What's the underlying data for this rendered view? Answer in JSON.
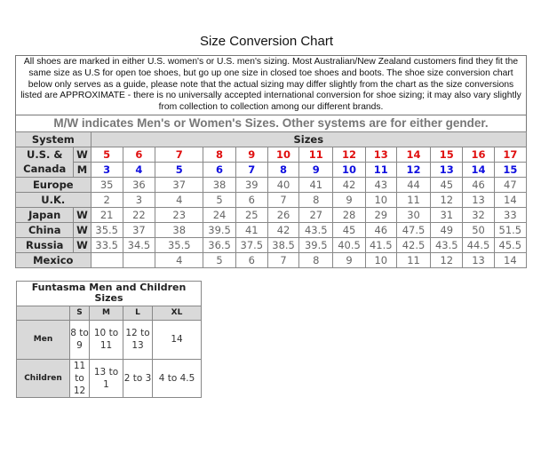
{
  "title": "Size Conversion Chart",
  "note": "All shoes are marked in either U.S. women's or U.S. men's sizing. Most Australian/New Zealand customers find they fit the same size as U.S for open toe shoes, but go up one size in closed toe shoes and boots. The shoe size conversion chart below only serves as a guide, please note that the actual sizing may differ slightly from the chart as the size conversions listed are APPROXIMATE - there is no universally accepted international conversion for shoe sizing; it may also vary slightly from collection to collection among our different brands.",
  "mw_note": "M/W indicates Men's or Women's Sizes. Other systems are for either gender.",
  "main_table": {
    "system_header": "System",
    "sizes_header": "Sizes",
    "us_label": "U.S. & Canada",
    "rows": [
      {
        "label": "",
        "sub": "W",
        "kind": "w",
        "values": [
          "5",
          "6",
          "7",
          "8",
          "9",
          "10",
          "11",
          "12",
          "13",
          "14",
          "15",
          "16",
          "17"
        ]
      },
      {
        "label": "",
        "sub": "M",
        "kind": "m",
        "values": [
          "3",
          "4",
          "5",
          "6",
          "7",
          "8",
          "9",
          "10",
          "11",
          "12",
          "13",
          "14",
          "15"
        ]
      },
      {
        "label": "Europe",
        "sub": "",
        "kind": "n",
        "values": [
          "35",
          "36",
          "37",
          "38",
          "39",
          "40",
          "41",
          "42",
          "43",
          "44",
          "45",
          "46",
          "47"
        ]
      },
      {
        "label": "U.K.",
        "sub": "",
        "kind": "n",
        "values": [
          "2",
          "3",
          "4",
          "5",
          "6",
          "7",
          "8",
          "9",
          "10",
          "11",
          "12",
          "13",
          "14"
        ]
      },
      {
        "label": "Japan",
        "sub": "W",
        "kind": "n",
        "values": [
          "21",
          "22",
          "23",
          "24",
          "25",
          "26",
          "27",
          "28",
          "29",
          "30",
          "31",
          "32",
          "33"
        ]
      },
      {
        "label": "China",
        "sub": "W",
        "kind": "n",
        "values": [
          "35.5",
          "37",
          "38",
          "39.5",
          "41",
          "42",
          "43.5",
          "45",
          "46",
          "47.5",
          "49",
          "50",
          "51.5"
        ]
      },
      {
        "label": "Russia",
        "sub": "W",
        "kind": "n",
        "values": [
          "33.5",
          "34.5",
          "35.5",
          "36.5",
          "37.5",
          "38.5",
          "39.5",
          "40.5",
          "41.5",
          "42.5",
          "43.5",
          "44.5",
          "45.5"
        ]
      },
      {
        "label": "Mexico",
        "sub": "",
        "kind": "n",
        "values": [
          "",
          "",
          "4",
          "5",
          "6",
          "7",
          "8",
          "9",
          "10",
          "11",
          "12",
          "13",
          "14"
        ]
      }
    ]
  },
  "funtasma": {
    "title": "Funtasma Men and Children Sizes",
    "headers": [
      "S",
      "M",
      "L",
      "XL"
    ],
    "rows": [
      {
        "label": "Men",
        "values": [
          "8 to 9",
          "10 to 11",
          "12 to 13",
          "14"
        ]
      },
      {
        "label": "Children",
        "values": [
          "11 to 12",
          "13 to 1",
          "2 to 3",
          "4 to 4.5"
        ]
      }
    ]
  },
  "colors": {
    "women": "#e01010",
    "men": "#1010e0",
    "header_bg": "#d9d9d9"
  }
}
